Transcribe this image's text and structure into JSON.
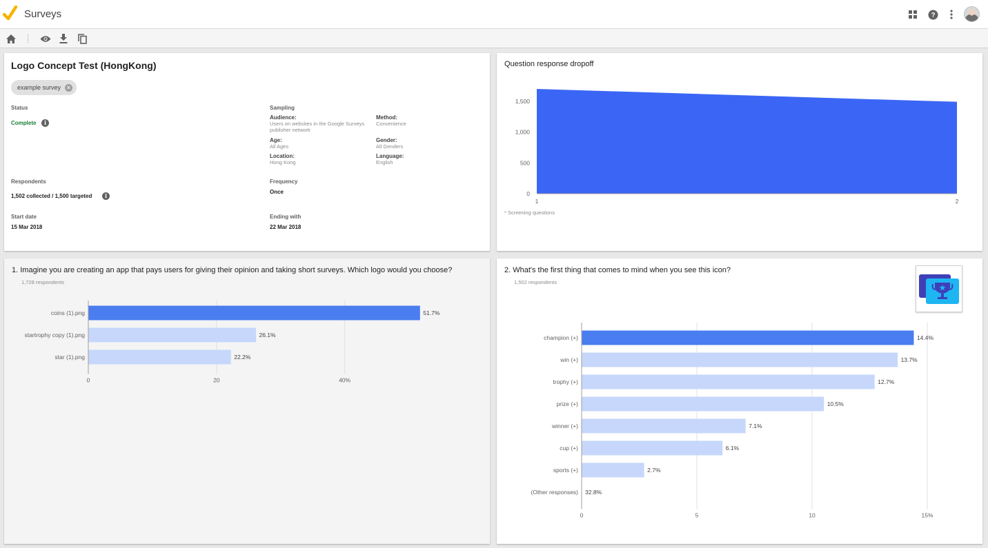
{
  "app": {
    "title": "Surveys"
  },
  "survey": {
    "title": "Logo Concept Test (HongKong)",
    "chip_label": "example survey",
    "status_label": "Status",
    "status_value": "Complete",
    "sampling_label": "Sampling",
    "audience_label": "Audience:",
    "audience_value": "Users on websites in the Google Surveys publisher network",
    "method_label": "Method:",
    "method_value": "Convenience",
    "age_label": "Age:",
    "age_value": "All Ages",
    "gender_label": "Gender:",
    "gender_value": "All Genders",
    "location_label": "Location:",
    "location_value": "Hong Kong",
    "language_label": "Language:",
    "language_value": "English",
    "respondents_label": "Respondents",
    "respondents_value": "1,502 collected / 1,500 targeted",
    "frequency_label": "Frequency",
    "frequency_value": "Once",
    "start_label": "Start date",
    "start_value": "15 Mar 2018",
    "end_label": "Ending with",
    "end_value": "22 Mar 2018"
  },
  "icons": {
    "logo": "checkmark-logo",
    "top": [
      "apps-grid-icon",
      "help-icon",
      "more-vert-icon"
    ],
    "toolbar": [
      "home-icon",
      "preview-eye-icon",
      "download-icon",
      "copy-icon"
    ]
  },
  "colors": {
    "primary_bar": "#4a7df0",
    "secondary_bar": "#c6d7fb",
    "area": "#3b66f5",
    "status_green": "#188038",
    "logo_yellow": "#f6b400"
  },
  "dropoff": {
    "heading": "Question response dropoff",
    "footnote": "* Screening questions",
    "chart_data": {
      "type": "area",
      "x": [
        1,
        2
      ],
      "y": [
        1700,
        1490
      ],
      "xticks": [
        "1",
        "2"
      ],
      "yticks": [
        "0",
        "500",
        "1,000",
        "1,500"
      ],
      "ylim": [
        0,
        1700
      ],
      "grid": true
    }
  },
  "question1": {
    "heading": "1.  Imagine you are creating an app that pays users for giving their opinion and taking short surveys. Which logo would you choose?",
    "respondents": "1,728 respondents",
    "chart_data": {
      "type": "bar",
      "orientation": "horizontal",
      "categories": [
        "coins (1).png",
        "startrophy copy (1).png",
        "star (1).png"
      ],
      "values": [
        51.7,
        26.1,
        22.2
      ],
      "value_labels": [
        "51.7%",
        "26.1%",
        "22.2%"
      ],
      "xticks": [
        {
          "value": 0,
          "label": "0"
        },
        {
          "value": 20,
          "label": "20"
        },
        {
          "value": 40,
          "label": "40%"
        }
      ],
      "xlim": [
        0,
        40
      ]
    }
  },
  "question2": {
    "heading": "2.  What's the first thing that comes to mind when you see this icon?",
    "respondents": "1,502 respondents",
    "chart_data": {
      "type": "bar",
      "orientation": "horizontal",
      "categories": [
        "champion (+)",
        "win (+)",
        "trophy (+)",
        "prize (+)",
        "winner (+)",
        "cup (+)",
        "sports (+)",
        "(Other responses)"
      ],
      "values": [
        14.4,
        13.7,
        12.7,
        10.5,
        7.1,
        6.1,
        2.7,
        32.8
      ],
      "value_labels": [
        "14.4%",
        "13.7%",
        "12.7%",
        "10.5%",
        "7.1%",
        "6.1%",
        "2.7%",
        "32.8%"
      ],
      "xticks": [
        {
          "value": 0,
          "label": "0"
        },
        {
          "value": 5,
          "label": "5"
        },
        {
          "value": 10,
          "label": "10"
        },
        {
          "value": 15,
          "label": "15%"
        }
      ],
      "xlim": [
        0,
        15
      ]
    }
  }
}
